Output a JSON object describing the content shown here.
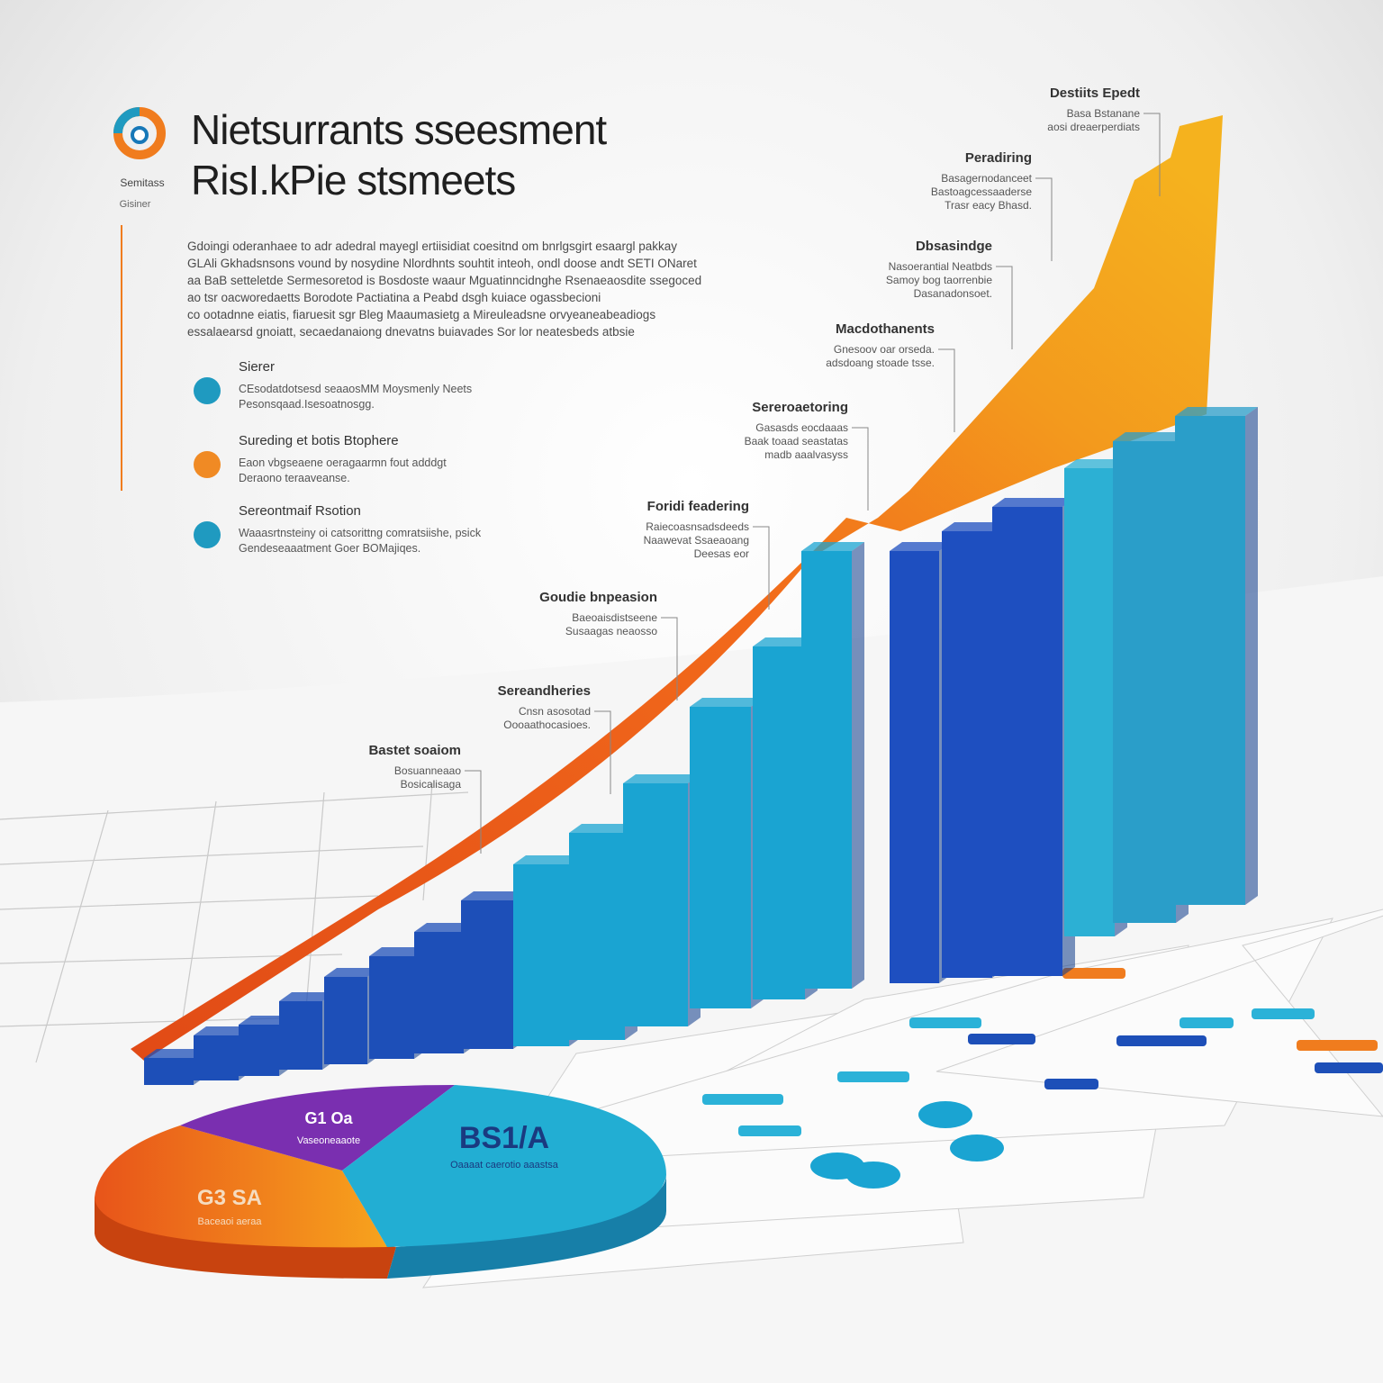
{
  "logo": {
    "label": "Semitass",
    "sublabel": "Gisiner"
  },
  "header": {
    "title_line1": "Nietsurrants sseesment",
    "title_line2": "RisI.kPie stsmeets",
    "intro": [
      "Gdoingi oderanhaee to adr adedral mayegl ertiisidiat coesitnd om bnrlgsgirt esaargl pakkay",
      "GLAli Gkhadsnsons vound by nosydine Nlordhnts souhtit inteoh, ondl doose andt SETI ONaret",
      "aa BaB setteletde Sermesoretod is Bosdoste waaur Mguatinncidnghe Rsenaeaosdite ssegoced",
      "ao tsr oacworedaetts Borodote Pactiatina a Peabd dsgh kuiace ogassbecioni",
      "co ootadnne eiatis, fiaruesit sgr Bleg Maaumasietg a Mireuleadsne orvyeaneabeadiogs",
      "essalaearsd gnoiatt, secaedanaiong dnevatns buiavades Sor lor neatesbeds atbsie"
    ]
  },
  "features": [
    {
      "title": "Sierer",
      "lines": [
        "CEsodatdotsesd seaaosMM Moysmenly Neets",
        "Pesonsqaad.Isesoatnosgg."
      ]
    },
    {
      "title": "Sureding et botis Btophere",
      "lines": [
        "Eaon vbgseaene oeragaarmn fout adddgt",
        "Deraono teraaveanse."
      ]
    },
    {
      "title": "Sereontmaif Rsotion",
      "lines": [
        "Waaasrtnsteiny oi catsorittng comratsiishe, psick",
        "Gendeseaaatment Goer BOMajiqes."
      ]
    }
  ],
  "callouts": [
    {
      "title": "Destiits Epedt",
      "lines": [
        "Basa Bstanane",
        "aosi dreaerperdiats"
      ]
    },
    {
      "title": "Peradiring",
      "lines": [
        "Basagernodanceet",
        "Bastoagcessaaderse",
        "Trasr eacy Bhasd."
      ]
    },
    {
      "title": "Dbsasindge",
      "lines": [
        "Nasoerantial Neatbds",
        "Samoy bog taorrenbie",
        "Dasanadonsoet."
      ]
    },
    {
      "title": "Macdothanents",
      "lines": [
        "Gnesoov oar orseda.",
        "adsdoang stoade tsse."
      ]
    },
    {
      "title": "Sereroaetoring",
      "lines": [
        "Gasasds eocdaaas",
        "Baak toaad seastatas",
        "madb aaalvasyss"
      ]
    },
    {
      "title": "Foridi feadering",
      "lines": [
        "Raiecoasnsadsdeeds",
        "Naawevat Ssaeaoang",
        "Deesas eor"
      ]
    },
    {
      "title": "Goudie bnpeasion",
      "lines": [
        "Baeoaisdistseene",
        "Susaagas neaosso"
      ]
    },
    {
      "title": "Sereandheries",
      "lines": [
        "Cnsn asosotad",
        "Oooaathocasioes."
      ]
    },
    {
      "title": "Bastet soaiom",
      "lines": [
        "Bosuanneaao",
        "Bosicalisaga"
      ]
    }
  ],
  "pie": {
    "labels": [
      {
        "title": "BS1/A",
        "text": "Oaaaat caerotio aaastsa"
      },
      {
        "title": "G1 Oa",
        "text": "Vaseoneaaote"
      },
      {
        "title": "G3 SA",
        "text": "Baceaoi aeraa"
      }
    ]
  }
}
